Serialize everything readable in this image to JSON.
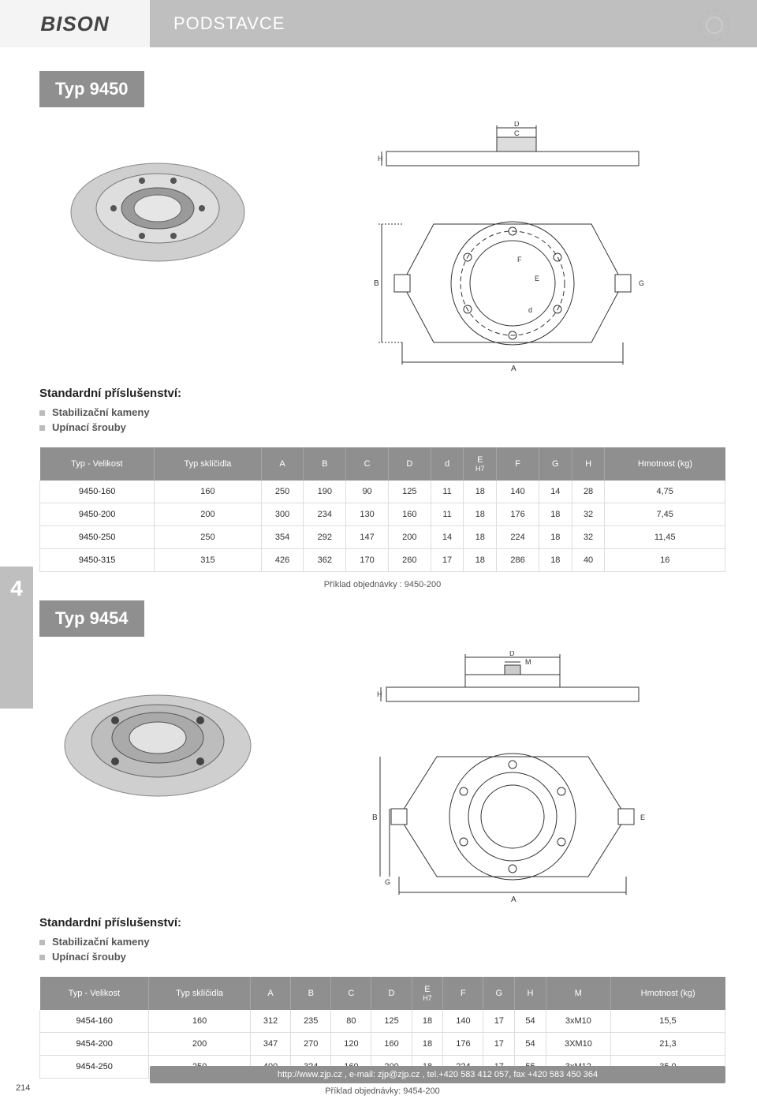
{
  "header": {
    "logo_text": "BISON",
    "category": "PODSTAVCE"
  },
  "side_tab": "4",
  "page_number": "214",
  "footer": "http://www.zjp.cz , e-mail: zjp@zjp.cz , tel.+420 583 412 057, fax +420 583 450 364",
  "accessories": {
    "title": "Standardní příslušenství:",
    "items": [
      "Stabilizační kameny",
      "Upínací šrouby"
    ]
  },
  "section1": {
    "type_label": "Typ 9450",
    "diagram1_labels": {
      "D": "D",
      "C": "C",
      "H": "H"
    },
    "diagram2_labels": {
      "A": "A",
      "B": "B",
      "E": "E",
      "F": "F",
      "G": "G",
      "d": "d"
    },
    "table": {
      "columns": [
        "Typ - Velikost",
        "Typ sklíčidla",
        "A",
        "B",
        "C",
        "D",
        "d",
        "E\nH7",
        "F",
        "G",
        "H",
        "Hmotnost (kg)"
      ],
      "rows": [
        [
          "9450-160",
          "160",
          "250",
          "190",
          "90",
          "125",
          "11",
          "18",
          "140",
          "14",
          "28",
          "4,75"
        ],
        [
          "9450-200",
          "200",
          "300",
          "234",
          "130",
          "160",
          "11",
          "18",
          "176",
          "18",
          "32",
          "7,45"
        ],
        [
          "9450-250",
          "250",
          "354",
          "292",
          "147",
          "200",
          "14",
          "18",
          "224",
          "18",
          "32",
          "11,45"
        ],
        [
          "9450-315",
          "315",
          "426",
          "362",
          "170",
          "260",
          "17",
          "18",
          "286",
          "18",
          "40",
          "16"
        ]
      ]
    },
    "example": "Příklad objednávky : 9450-200"
  },
  "section2": {
    "type_label": "Typ 9454",
    "diagram1_labels": {
      "D": "D",
      "M": "M",
      "H": "H"
    },
    "diagram2_labels": {
      "A": "A",
      "B": "B",
      "E": "E",
      "G": "G"
    },
    "table": {
      "columns": [
        "Typ - Velikost",
        "Typ sklíčidla",
        "A",
        "B",
        "C",
        "D",
        "E\nH7",
        "F",
        "G",
        "H",
        "M",
        "Hmotnost (kg)"
      ],
      "rows": [
        [
          "9454-160",
          "160",
          "312",
          "235",
          "80",
          "125",
          "18",
          "140",
          "17",
          "54",
          "3xM10",
          "15,5"
        ],
        [
          "9454-200",
          "200",
          "347",
          "270",
          "120",
          "160",
          "18",
          "176",
          "17",
          "54",
          "3XM10",
          "21,3"
        ],
        [
          "9454-250",
          "250",
          "400",
          "324",
          "160",
          "200",
          "18",
          "224",
          "17",
          "55",
          "3xM12",
          "35,0"
        ]
      ]
    },
    "example": "Příklad objednávky: 9454-200"
  },
  "colors": {
    "header_grey": "#bfbfbf",
    "logo_grey": "#f4f4f4",
    "table_head": "#8f8f8f",
    "text": "#222222",
    "border": "#dddddd"
  }
}
